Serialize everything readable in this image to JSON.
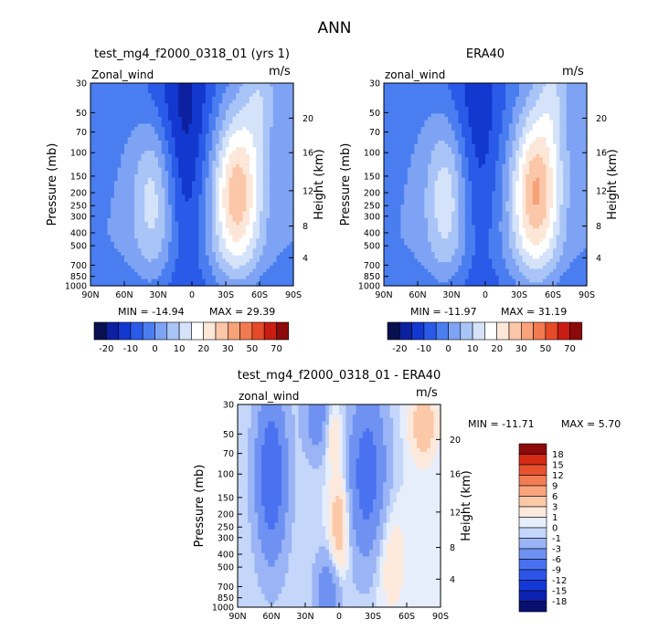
{
  "title": "ANN",
  "colors": {
    "panel_scale": [
      "#08104f",
      "#0d20a0",
      "#1238d0",
      "#2a5ae8",
      "#4a7ef0",
      "#7ea3f4",
      "#a9c4f6",
      "#d5e3fa",
      "#ffffff",
      "#fde7d8",
      "#fbc7a8",
      "#f8a27a",
      "#f27a50",
      "#e64a28",
      "#c91c12",
      "#8c0a0a"
    ],
    "diff_scale": [
      "#08106e",
      "#0d22b0",
      "#1438d8",
      "#2c54e8",
      "#4a72f0",
      "#6f92f2",
      "#9ab4f5",
      "#c4d6f9",
      "#e6eefc",
      "#fde9dc",
      "#fbc9a8",
      "#f8a57d",
      "#f27d55",
      "#e8532f",
      "#d42a16",
      "#8c0a0a"
    ]
  },
  "chart_data": [
    {
      "type": "heatmap",
      "id": "model",
      "title": "test_mg4_f2000_0318_01 (yrs 1)",
      "field_label": "Zonal_wind",
      "units": "m/s",
      "ylabel": "Pressure (mb)",
      "y2label": "Height (km)",
      "pressure_ticks": [
        "30",
        "50",
        "70",
        "100",
        "150",
        "200",
        "250",
        "300",
        "400",
        "500",
        "700",
        "850",
        "1000"
      ],
      "height_ticks": [
        "20",
        "16",
        "12",
        "8",
        "4"
      ],
      "x_ticks": [
        "90N",
        "60N",
        "30N",
        "0",
        "30S",
        "60S",
        "90S"
      ],
      "min_label": "MIN = -14.94",
      "max_label": "MAX =  29.39",
      "colorbar_labels": [
        "-20",
        "-10",
        "0",
        "10",
        "20",
        "30",
        "50",
        "70"
      ],
      "jets": [
        {
          "lat": -40,
          "level": 200,
          "peak": 29.4
        },
        {
          "lat": 35,
          "level": 200,
          "peak": 14
        }
      ],
      "easterly_min": -14.94
    },
    {
      "type": "heatmap",
      "id": "obs",
      "title": "ERA40",
      "field_label": "zonal_wind",
      "units": "m/s",
      "ylabel": "Pressure (mb)",
      "y2label": "Height (km)",
      "pressure_ticks": [
        "30",
        "50",
        "70",
        "100",
        "150",
        "200",
        "250",
        "300",
        "400",
        "500",
        "700",
        "850",
        "1000"
      ],
      "height_ticks": [
        "20",
        "16",
        "12",
        "8",
        "4"
      ],
      "x_ticks": [
        "90N",
        "60N",
        "30N",
        "0",
        "30S",
        "60S",
        "90S"
      ],
      "min_label": "MIN = -11.97",
      "max_label": "MAX =  31.19",
      "colorbar_labels": [
        "-20",
        "-10",
        "0",
        "10",
        "20",
        "30",
        "50",
        "70"
      ],
      "jets": [
        {
          "lat": -45,
          "level": 200,
          "peak": 31.2
        },
        {
          "lat": 35,
          "level": 200,
          "peak": 15
        }
      ],
      "easterly_min": -11.97
    },
    {
      "type": "heatmap",
      "id": "difference",
      "title": "test_mg4_f2000_0318_01 - ERA40",
      "field_label": "zonal_wind",
      "units": "m/s",
      "ylabel": "Pressure (mb)",
      "y2label": "Height (km)",
      "pressure_ticks": [
        "30",
        "50",
        "70",
        "100",
        "150",
        "200",
        "250",
        "300",
        "400",
        "500",
        "700",
        "850",
        "1000"
      ],
      "height_ticks": [
        "20",
        "16",
        "12",
        "8",
        "4"
      ],
      "x_ticks": [
        "90N",
        "60N",
        "30N",
        "0",
        "30S",
        "60S",
        "90S"
      ],
      "min_label": "MIN = -11.71",
      "max_label": "MAX =   5.70",
      "colorbar_levels": [
        "18",
        "15",
        "12",
        "9",
        "6",
        "3",
        "1",
        "0",
        "-1",
        "-3",
        "-6",
        "-9",
        "-12",
        "-15",
        "-18"
      ]
    }
  ]
}
